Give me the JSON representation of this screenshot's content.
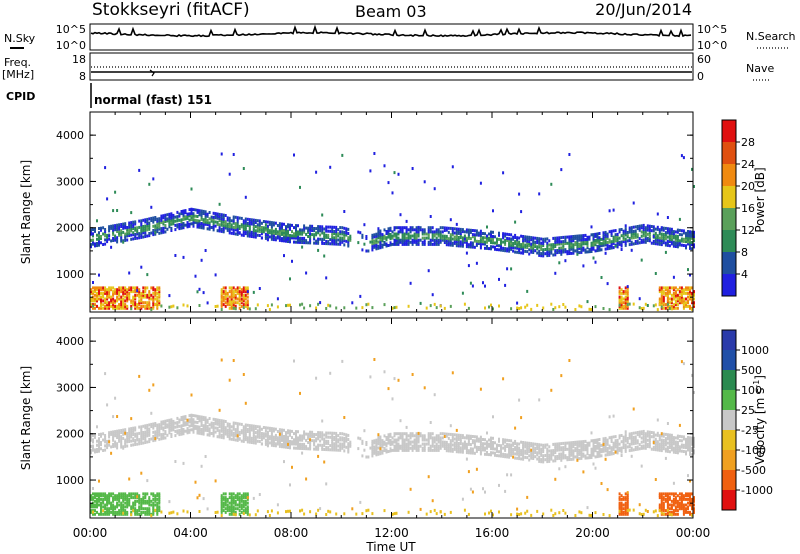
{
  "header": {
    "station": "Stokkseyri (fitACF)",
    "beam": "Beam 03",
    "date": "20/Jun/2014"
  },
  "status_panels": {
    "nsky_label": "N.Sky",
    "nsearch_label": "N.Search",
    "noise_ticks_left": [
      "10^5",
      "10^0"
    ],
    "noise_ticks_right": [
      "10^5",
      "10^0"
    ],
    "freq_label": "Freq.",
    "freq_unit": "[MHz]",
    "freq_ticks": [
      "18",
      "8"
    ],
    "nave_label": "Nave",
    "nave_ticks": [
      "60",
      "0"
    ],
    "cpid_label": "CPID",
    "cpid_value": "normal (fast) 151"
  },
  "colors": {
    "power": [
      "#2020e0",
      "#1f4fa0",
      "#2e8b57",
      "#5aa05a",
      "#e6c619",
      "#f08a10",
      "#e05010",
      "#e01010"
    ],
    "velocity": [
      "#2a3aaa",
      "#2050a8",
      "#2a8a50",
      "#54b848",
      "#c8c8c8",
      "#e8c020",
      "#f0a020",
      "#f06010",
      "#e01010"
    ]
  },
  "chart_data": [
    {
      "type": "heatmap",
      "name": "power",
      "ylabel": "Slant Range [km]",
      "xlabel": "Time UT",
      "x_ticks": [
        "00:00",
        "04:00",
        "08:00",
        "12:00",
        "16:00",
        "20:00",
        "00:00"
      ],
      "y_ticks": [
        1000,
        2000,
        3000,
        4000
      ],
      "ylim": [
        180,
        4500
      ],
      "colorbar_label": "Power [dB]",
      "colorbar_ticks": [
        "4",
        "8",
        "12",
        "16",
        "20",
        "24",
        "28"
      ],
      "main_band": [
        [
          0,
          1750
        ],
        [
          2,
          1950
        ],
        [
          4,
          2200
        ],
        [
          6,
          2000
        ],
        [
          8,
          1850
        ],
        [
          10,
          1800
        ],
        [
          11,
          1650
        ],
        [
          12,
          1800
        ],
        [
          14,
          1800
        ],
        [
          16,
          1700
        ],
        [
          18,
          1550
        ],
        [
          20,
          1650
        ],
        [
          22,
          1850
        ],
        [
          24,
          1700
        ]
      ],
      "near_echo_spans": [
        [
          0,
          2.8
        ],
        [
          5.2,
          6.3
        ],
        [
          21.0,
          21.4
        ],
        [
          22.6,
          24
        ]
      ]
    },
    {
      "type": "heatmap",
      "name": "velocity",
      "ylabel": "Slant Range [km]",
      "xlabel": "Time UT",
      "x_ticks": [
        "00:00",
        "04:00",
        "08:00",
        "12:00",
        "16:00",
        "20:00",
        "00:00"
      ],
      "y_ticks": [
        1000,
        2000,
        3000,
        4000
      ],
      "ylim": [
        180,
        4500
      ],
      "colorbar_label": "Velocity [m s",
      "colorbar_label_sup": "-1",
      "colorbar_ticks": [
        "1000",
        "500",
        "100",
        "25",
        "-25",
        "-100",
        "-500",
        "-1000"
      ]
    }
  ]
}
